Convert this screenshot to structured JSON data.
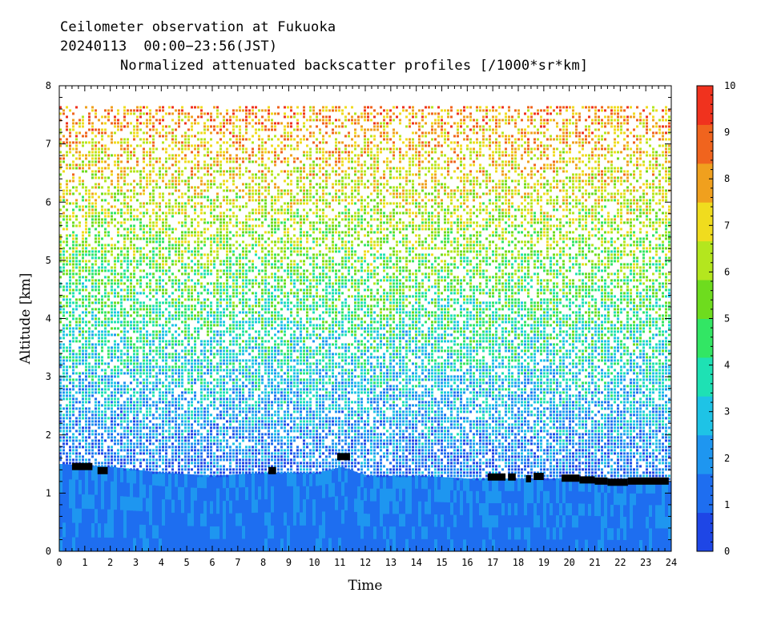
{
  "header": {
    "line1": "Ceilometer observation at Fukuoka",
    "line2": "20240113  00:00−23:56(JST)",
    "line3": "Normalized attenuated backscatter profiles [/1000*sr*km]"
  },
  "chart_data": {
    "type": "heatmap",
    "title": "Normalized attenuated backscatter profiles [/1000*sr*km]",
    "xlabel": "Time",
    "ylabel": "Altitude [km]",
    "xlim": [
      0,
      24
    ],
    "ylim": [
      0,
      8
    ],
    "x_ticks": [
      "0",
      "1",
      "2",
      "3",
      "4",
      "5",
      "6",
      "7",
      "8",
      "9",
      "10",
      "11",
      "12",
      "13",
      "14",
      "15",
      "16",
      "17",
      "18",
      "19",
      "20",
      "21",
      "22",
      "23",
      "24"
    ],
    "y_ticks": [
      "0",
      "1",
      "2",
      "3",
      "4",
      "5",
      "6",
      "7",
      "8"
    ],
    "colorbar": {
      "range": [
        0,
        10
      ],
      "ticks": [
        "0",
        "1",
        "2",
        "3",
        "4",
        "5",
        "6",
        "7",
        "8",
        "9",
        "10"
      ],
      "colors": [
        "#1e46e6",
        "#1e6ef0",
        "#1e96f0",
        "#1ec3e6",
        "#1ee1b4",
        "#32e664",
        "#6edc1e",
        "#b4e61e",
        "#f0dc1e",
        "#f0a01e",
        "#f0641e",
        "#f0321e"
      ]
    },
    "data_top_altitude_km": 7.65,
    "boundary_layer_top_km": [
      {
        "t": 0,
        "z": 1.5
      },
      {
        "t": 2,
        "z": 1.45
      },
      {
        "t": 4,
        "z": 1.35
      },
      {
        "t": 6,
        "z": 1.3
      },
      {
        "t": 8,
        "z": 1.35
      },
      {
        "t": 10,
        "z": 1.35
      },
      {
        "t": 11,
        "z": 1.45
      },
      {
        "t": 12,
        "z": 1.3
      },
      {
        "t": 14,
        "z": 1.3
      },
      {
        "t": 16,
        "z": 1.25
      },
      {
        "t": 18,
        "z": 1.25
      },
      {
        "t": 20,
        "z": 1.25
      },
      {
        "t": 22,
        "z": 1.2
      },
      {
        "t": 24,
        "z": 1.2
      }
    ],
    "cloud_base_segments": [
      {
        "t0": 0.5,
        "t1": 1.3,
        "z": 1.45
      },
      {
        "t0": 1.5,
        "t1": 1.9,
        "z": 1.38
      },
      {
        "t0": 8.2,
        "t1": 8.5,
        "z": 1.38
      },
      {
        "t0": 10.9,
        "t1": 11.4,
        "z": 1.62
      },
      {
        "t0": 16.8,
        "t1": 17.5,
        "z": 1.27
      },
      {
        "t0": 17.6,
        "t1": 17.9,
        "z": 1.27
      },
      {
        "t0": 18.3,
        "t1": 18.5,
        "z": 1.24
      },
      {
        "t0": 18.6,
        "t1": 19.0,
        "z": 1.28
      },
      {
        "t0": 19.7,
        "t1": 20.4,
        "z": 1.25
      },
      {
        "t0": 20.4,
        "t1": 21.0,
        "z": 1.22
      },
      {
        "t0": 21.0,
        "t1": 21.5,
        "z": 1.2
      },
      {
        "t0": 21.5,
        "t1": 22.3,
        "z": 1.18
      },
      {
        "t0": 22.3,
        "t1": 23.9,
        "z": 1.2
      }
    ]
  }
}
